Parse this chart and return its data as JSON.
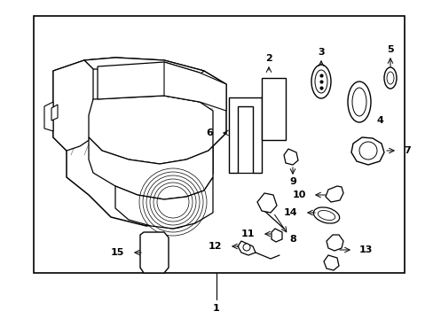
{
  "bg_color": "#ffffff",
  "border_color": "#000000",
  "line_color": "#000000",
  "text_color": "#000000",
  "fig_width": 4.89,
  "fig_height": 3.6,
  "dpi": 100
}
